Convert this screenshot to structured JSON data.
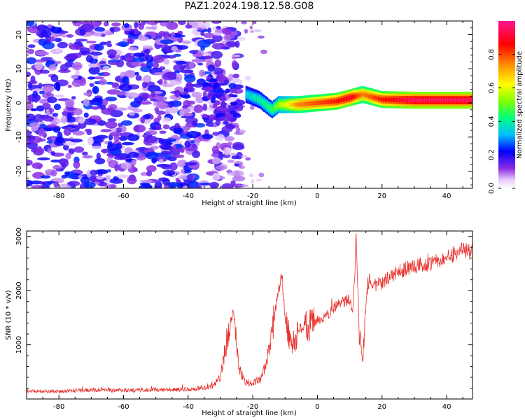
{
  "title": "PAZ1.2024.198.12.58.G08",
  "chart_data": [
    {
      "type": "heatmap",
      "xlabel": "Height of straight line (km)",
      "ylabel": "Frequency (Hz)",
      "xlim": [
        -90,
        48
      ],
      "ylim": [
        -25,
        24
      ],
      "xticks": [
        -80,
        -60,
        -40,
        -20,
        0,
        20,
        40
      ],
      "yticks": [
        -20,
        -10,
        0,
        10,
        20
      ],
      "colorbar": {
        "label": "Normalized spectral amplitude",
        "range": [
          0.0,
          1.0
        ],
        "ticks": [
          0.0,
          0.2,
          0.4,
          0.6,
          0.8
        ],
        "colormap": [
          "#ffffff",
          "#e6ccff",
          "#8a2be2",
          "#0000ff",
          "#00bfff",
          "#00ff7f",
          "#7fff00",
          "#ffff00",
          "#ff8c00",
          "#ff0000",
          "#ff1493"
        ]
      },
      "ridge": {
        "description_units": "height km vs frequency Hz (signal band center)",
        "height": [
          -22,
          -18,
          -14,
          -12,
          -10,
          -6,
          0,
          6,
          10,
          14,
          20,
          30,
          48
        ],
        "frequency": [
          2.5,
          1.0,
          -2.0,
          -0.5,
          -0.5,
          -0.5,
          0.0,
          0.5,
          1.5,
          2.5,
          1.0,
          0.8,
          0.8
        ],
        "amplitude": [
          0.35,
          0.4,
          0.45,
          0.55,
          0.6,
          0.75,
          0.8,
          0.85,
          0.9,
          0.75,
          0.85,
          0.95,
          0.95
        ]
      },
      "noise_region": {
        "height_range": [
          -90,
          -30
        ],
        "amplitude": [
          0.05,
          0.25
        ]
      }
    },
    {
      "type": "line",
      "xlabel": "Height of straight line (km)",
      "ylabel": "SNR (10 * v/v)",
      "xlim": [
        -90,
        48
      ],
      "ylim": [
        0,
        3100
      ],
      "xticks": [
        -80,
        -60,
        -40,
        -20,
        0,
        20,
        40
      ],
      "yticks": [
        1000,
        2000,
        3000
      ],
      "series": [
        {
          "color": "#e8302c",
          "x": [
            -90,
            -80,
            -70,
            -60,
            -50,
            -40,
            -33,
            -30,
            -28,
            -26,
            -25,
            -24,
            -22,
            -20,
            -18,
            -16,
            -14,
            -12,
            -11,
            -10,
            -8,
            -6,
            -4,
            -2,
            0,
            2,
            4,
            6,
            8,
            10,
            11,
            12,
            13,
            14,
            15,
            16,
            18,
            20,
            25,
            30,
            35,
            40,
            45,
            48
          ],
          "y": [
            150,
            140,
            170,
            160,
            170,
            180,
            220,
            400,
            1100,
            1600,
            1000,
            500,
            300,
            300,
            350,
            600,
            1200,
            2000,
            2300,
            1500,
            1000,
            1200,
            1350,
            1350,
            1450,
            1500,
            1600,
            1750,
            1800,
            1850,
            1600,
            3000,
            1200,
            700,
            1800,
            2200,
            2100,
            2150,
            2350,
            2450,
            2500,
            2600,
            2750,
            2700
          ]
        }
      ]
    }
  ]
}
